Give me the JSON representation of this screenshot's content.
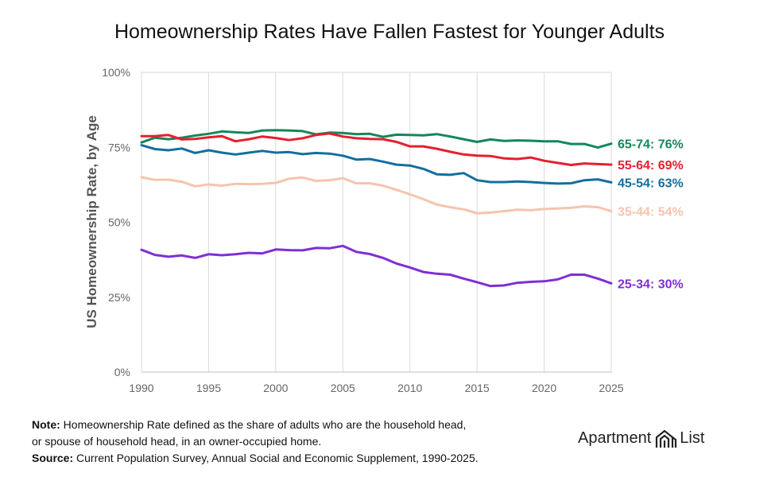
{
  "chart_data": {
    "type": "line",
    "title": "Homeownership Rates Have Fallen Fastest for Younger Adults",
    "ylabel": "US Homeownership Rate, by Age",
    "xlabel": "",
    "xlim": [
      1990,
      2025
    ],
    "ylim": [
      0,
      100
    ],
    "x_ticks": [
      "1990",
      "1995",
      "2000",
      "2005",
      "2010",
      "2015",
      "2020",
      "2025"
    ],
    "y_ticks": [
      "0%",
      "25%",
      "50%",
      "75%",
      "100%"
    ],
    "grid": "vertical",
    "x": [
      1990,
      1991,
      1992,
      1993,
      1994,
      1995,
      1996,
      1997,
      1998,
      1999,
      2000,
      2001,
      2002,
      2003,
      2004,
      2005,
      2006,
      2007,
      2008,
      2009,
      2010,
      2011,
      2012,
      2013,
      2014,
      2015,
      2016,
      2017,
      2018,
      2019,
      2020,
      2021,
      2022,
      2023,
      2024,
      2025
    ],
    "series": [
      {
        "name": "65-74",
        "end_label": "65-74: 76%",
        "color": "#14875a",
        "values": [
          76.6,
          78.2,
          77.7,
          78.2,
          78.9,
          79.5,
          80.3,
          80.0,
          79.8,
          80.6,
          80.7,
          80.6,
          80.4,
          79.3,
          79.9,
          79.8,
          79.4,
          79.5,
          78.5,
          79.2,
          79.1,
          79.0,
          79.4,
          78.6,
          77.7,
          76.8,
          77.6,
          77.1,
          77.3,
          77.2,
          77.0,
          77.0,
          76.1,
          76.1,
          74.9,
          76.2
        ]
      },
      {
        "name": "55-64",
        "end_label": "55-64: 69%",
        "color": "#e3202f",
        "values": [
          78.7,
          78.7,
          79.1,
          77.6,
          77.8,
          78.3,
          78.7,
          77.0,
          77.7,
          78.6,
          78.1,
          77.4,
          78.0,
          79.1,
          79.6,
          78.6,
          78.0,
          77.8,
          77.7,
          76.8,
          75.3,
          75.3,
          74.5,
          73.5,
          72.6,
          72.2,
          72.1,
          71.3,
          71.1,
          71.6,
          70.5,
          69.8,
          69.1,
          69.6,
          69.4,
          69.2
        ]
      },
      {
        "name": "45-54",
        "end_label": "45-54: 63%",
        "color": "#136f9e",
        "values": [
          75.7,
          74.4,
          74.0,
          74.6,
          73.1,
          74.0,
          73.2,
          72.6,
          73.2,
          73.8,
          73.2,
          73.4,
          72.7,
          73.1,
          72.9,
          72.2,
          70.9,
          71.1,
          70.2,
          69.2,
          68.9,
          67.8,
          66.0,
          65.8,
          66.4,
          64.0,
          63.4,
          63.4,
          63.6,
          63.4,
          63.1,
          62.9,
          63.0,
          64.0,
          64.3,
          63.3
        ]
      },
      {
        "name": "35-44",
        "end_label": "35-44: 54%",
        "color": "#f6c4ae",
        "values": [
          65.0,
          64.1,
          64.2,
          63.5,
          62.0,
          62.6,
          62.2,
          62.8,
          62.7,
          62.8,
          63.1,
          64.5,
          64.9,
          63.8,
          64.0,
          64.7,
          63.0,
          63.0,
          62.2,
          60.8,
          59.3,
          57.7,
          55.9,
          55.0,
          54.3,
          53.0,
          53.2,
          53.7,
          54.2,
          54.0,
          54.4,
          54.6,
          54.8,
          55.3,
          55.0,
          53.7
        ]
      },
      {
        "name": "25-34",
        "end_label": "25-34: 30%",
        "color": "#7f2fd3",
        "values": [
          40.8,
          39.1,
          38.5,
          38.9,
          38.1,
          39.3,
          39.0,
          39.3,
          39.8,
          39.6,
          40.9,
          40.7,
          40.6,
          41.4,
          41.3,
          42.1,
          40.1,
          39.4,
          38.1,
          36.2,
          34.9,
          33.4,
          32.8,
          32.5,
          31.2,
          30.0,
          28.7,
          28.9,
          29.8,
          30.1,
          30.3,
          30.9,
          32.5,
          32.5,
          31.2,
          29.6
        ]
      }
    ]
  },
  "notes": {
    "note_label": "Note:",
    "note_line1": "Homeownership Rate defined as the share of adults who are the household head,",
    "note_line2": "or spouse of household head, in an owner-occupied home.",
    "source_label": "Source:",
    "source_text": "Current Population Survey, Annual Social and Economic Supplement, 1990-2025."
  },
  "brand": {
    "left": "Apartment",
    "right": "List",
    "logo_icon": "apartment-list-logo-icon"
  }
}
